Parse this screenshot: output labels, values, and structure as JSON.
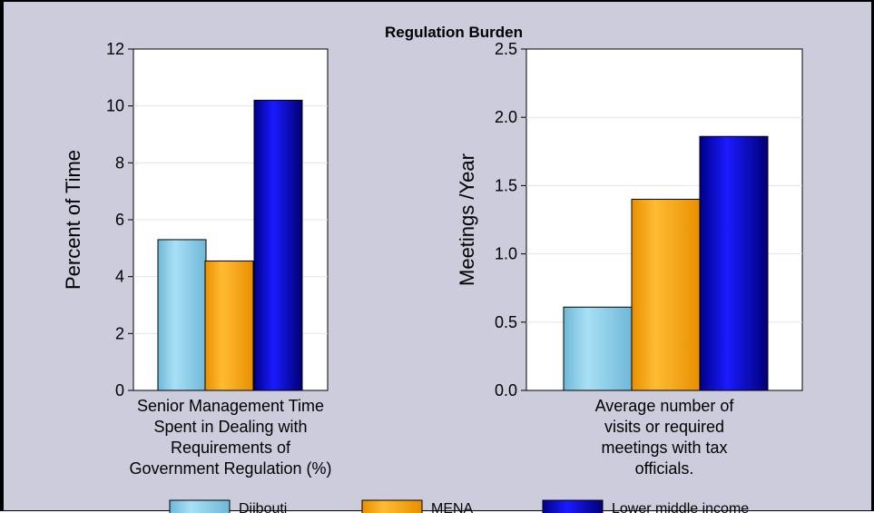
{
  "chart_data": {
    "title": "Regulation Burden",
    "type": "bar",
    "legend": {
      "placement": "bottom",
      "entries": [
        {
          "name": "Djibouti",
          "color": "#87ceeb"
        },
        {
          "name": "MENA",
          "color": "#ffa500"
        },
        {
          "name": "Lower middle income",
          "color": "#0000cc"
        }
      ]
    },
    "grid": true,
    "panels": [
      {
        "ylabel": "Percent of Time",
        "ylim": [
          0,
          12
        ],
        "yticks": [
          "0",
          "2",
          "4",
          "6",
          "8",
          "10",
          "12"
        ],
        "category_lines": [
          "Senior Management Time",
          "Spent in Dealing with",
          "Requirements of",
          "Government Regulation (%)"
        ],
        "values": [
          5.3,
          4.55,
          10.2
        ]
      },
      {
        "ylabel": "Meetings /Year",
        "ylim": [
          0,
          2.5
        ],
        "yticks": [
          "0.0",
          "0.5",
          "1.0",
          "1.5",
          "2.0",
          "2.5"
        ],
        "category_lines": [
          "Average number of",
          "visits or required",
          "meetings with tax",
          "officials."
        ],
        "values": [
          0.61,
          1.4,
          1.86
        ]
      }
    ]
  }
}
